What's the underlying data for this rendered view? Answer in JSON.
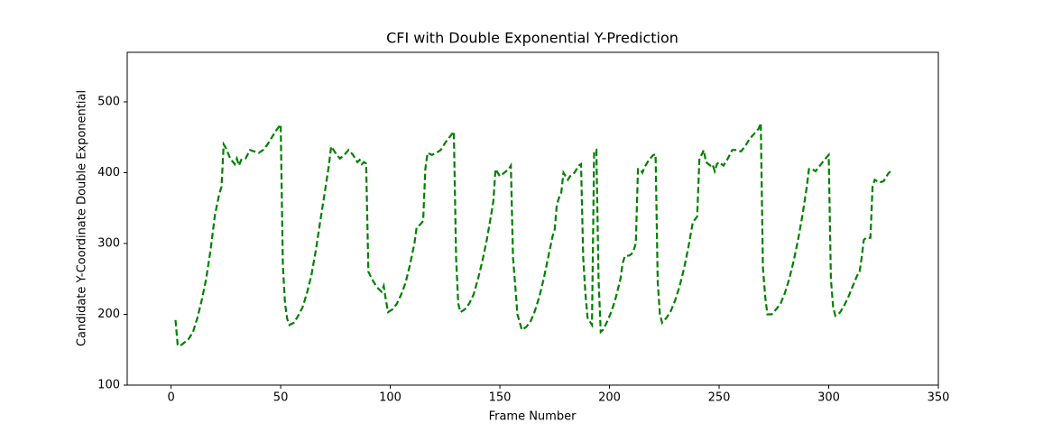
{
  "chart_data": {
    "type": "line",
    "title": "CFI with Double Exponential Y-Prediction",
    "xlabel": "Frame Number",
    "ylabel": "Candidate Y-Coordinate Double Exponential",
    "color": "#008000",
    "line_style": "dashed",
    "xlim": [
      -20,
      350
    ],
    "xticks": [
      0,
      50,
      100,
      150,
      200,
      250,
      300,
      350
    ],
    "ylim": [
      100,
      570
    ],
    "yticks": [
      100,
      200,
      300,
      400,
      500
    ],
    "x": [
      2,
      3,
      4,
      6,
      8,
      10,
      12,
      14,
      16,
      18,
      20,
      22,
      23,
      24,
      25,
      27,
      29,
      30,
      31,
      32,
      34,
      36,
      38,
      40,
      42,
      44,
      46,
      48,
      50,
      51,
      52,
      53,
      54,
      56,
      58,
      60,
      62,
      64,
      66,
      68,
      70,
      72,
      73,
      75,
      77,
      79,
      81,
      83,
      85,
      86,
      87,
      88,
      89,
      90,
      92,
      94,
      96,
      97,
      98,
      99,
      101,
      103,
      105,
      107,
      109,
      111,
      112,
      114,
      115,
      116,
      117,
      119,
      121,
      123,
      125,
      127,
      129,
      130,
      131,
      132,
      134,
      136,
      138,
      140,
      142,
      144,
      146,
      147,
      148,
      149,
      150,
      152,
      154,
      155,
      156,
      157,
      158,
      160,
      162,
      164,
      166,
      168,
      170,
      172,
      174,
      175,
      176,
      177,
      178,
      179,
      180,
      181,
      182,
      184,
      186,
      187,
      188,
      189,
      190,
      192,
      193,
      194,
      195,
      196,
      197,
      199,
      201,
      203,
      205,
      206,
      207,
      209,
      210,
      211,
      212,
      213,
      214,
      215,
      216,
      218,
      220,
      221,
      222,
      223,
      224,
      226,
      228,
      230,
      232,
      234,
      236,
      238,
      240,
      241,
      242,
      243,
      244,
      246,
      247,
      248,
      249,
      250,
      252,
      254,
      256,
      258,
      260,
      262,
      264,
      266,
      268,
      269,
      270,
      271,
      272,
      274,
      276,
      278,
      280,
      282,
      284,
      286,
      288,
      290,
      291,
      292,
      294,
      296,
      298,
      300,
      301,
      302,
      303,
      305,
      307,
      309,
      311,
      313,
      314,
      315,
      316,
      317,
      319,
      320,
      321,
      323,
      325,
      327,
      329
    ],
    "values": [
      192,
      157,
      155,
      160,
      165,
      175,
      195,
      220,
      250,
      290,
      340,
      370,
      380,
      440,
      435,
      420,
      412,
      420,
      410,
      418,
      420,
      432,
      430,
      428,
      432,
      440,
      450,
      460,
      468,
      270,
      215,
      193,
      185,
      188,
      198,
      210,
      230,
      255,
      290,
      330,
      370,
      410,
      437,
      428,
      420,
      425,
      432,
      425,
      415,
      418,
      412,
      415,
      413,
      260,
      248,
      238,
      232,
      240,
      220,
      203,
      207,
      215,
      228,
      245,
      270,
      300,
      322,
      328,
      332,
      405,
      428,
      425,
      428,
      432,
      442,
      450,
      458,
      280,
      215,
      203,
      207,
      215,
      228,
      250,
      275,
      305,
      340,
      360,
      405,
      400,
      395,
      400,
      405,
      410,
      280,
      240,
      200,
      178,
      182,
      190,
      205,
      225,
      250,
      280,
      310,
      320,
      355,
      365,
      372,
      400,
      395,
      390,
      395,
      400,
      410,
      412,
      280,
      230,
      195,
      185,
      430,
      432,
      250,
      175,
      178,
      190,
      205,
      225,
      250,
      272,
      282,
      283,
      285,
      290,
      300,
      405,
      405,
      400,
      408,
      418,
      425,
      426,
      245,
      200,
      188,
      195,
      205,
      220,
      240,
      265,
      295,
      330,
      338,
      420,
      425,
      432,
      415,
      410,
      412,
      402,
      412,
      415,
      410,
      420,
      432,
      432,
      430,
      438,
      448,
      455,
      462,
      470,
      265,
      225,
      200,
      200,
      207,
      215,
      230,
      250,
      275,
      305,
      340,
      380,
      405,
      406,
      402,
      410,
      418,
      425,
      250,
      210,
      198,
      202,
      212,
      225,
      240,
      255,
      258,
      280,
      305,
      308,
      308,
      380,
      390,
      386,
      388,
      398,
      405
    ]
  }
}
